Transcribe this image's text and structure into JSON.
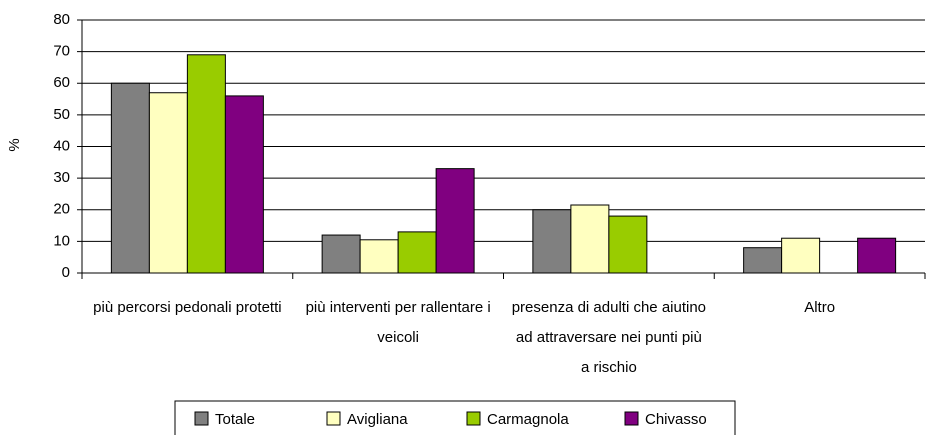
{
  "chart_data": {
    "type": "bar",
    "y_label": "%",
    "categories": [
      "più percorsi pedonali protetti",
      "più interventi per rallentare i veicoli",
      "presenza di adulti che aiutino ad attraversare nei punti più a rischio",
      "Altro"
    ],
    "series": [
      {
        "name": "Totale",
        "color": "#808080",
        "values": [
          60,
          12,
          20,
          8
        ]
      },
      {
        "name": "Avigliana",
        "color": "#ffffc0",
        "values": [
          57,
          10.5,
          21.5,
          11
        ]
      },
      {
        "name": "Carmagnola",
        "color": "#99cc00",
        "values": [
          69,
          13,
          18,
          0
        ]
      },
      {
        "name": "Chivasso",
        "color": "#800080",
        "values": [
          56,
          33,
          0,
          11
        ]
      }
    ],
    "ylim": [
      0,
      80
    ],
    "yticks": [
      0,
      10,
      20,
      30,
      40,
      50,
      60,
      70,
      80
    ],
    "grid": true
  }
}
